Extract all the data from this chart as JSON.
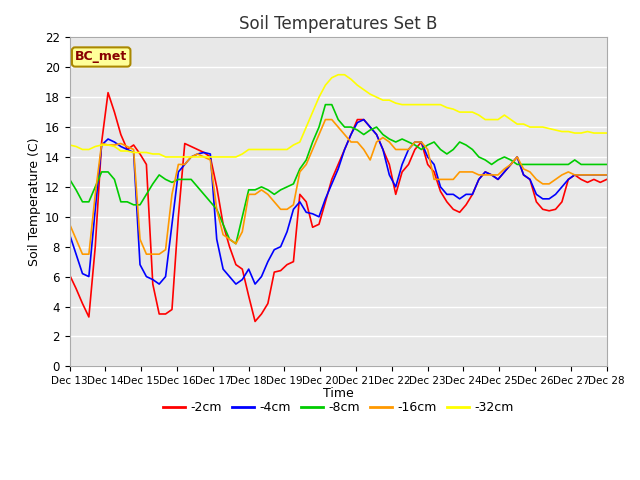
{
  "title": "Soil Temperatures Set B",
  "xlabel": "Time",
  "ylabel": "Soil Temperature (C)",
  "annotation": "BC_met",
  "ylim": [
    0,
    22
  ],
  "xlim": [
    0,
    15
  ],
  "x_tick_labels": [
    "Dec 13",
    "Dec 14",
    "Dec 15",
    "Dec 16",
    "Dec 17",
    "Dec 18",
    "Dec 19",
    "Dec 20",
    "Dec 21",
    "Dec 22",
    "Dec 23",
    "Dec 24",
    "Dec 25",
    "Dec 26",
    "Dec 27",
    "Dec 28"
  ],
  "bg_color": "#ffffff",
  "plot_bg_color": "#e8e8e8",
  "series_order": [
    "-2cm",
    "-4cm",
    "-8cm",
    "-16cm",
    "-32cm"
  ],
  "series": {
    "-2cm": {
      "color": "#ff0000",
      "lw": 1.2
    },
    "-4cm": {
      "color": "#0000ff",
      "lw": 1.2
    },
    "-8cm": {
      "color": "#00cc00",
      "lw": 1.2
    },
    "-16cm": {
      "color": "#ff9900",
      "lw": 1.2
    },
    "-32cm": {
      "color": "#ffff00",
      "lw": 1.2
    }
  },
  "data_x_days": 15,
  "data": {
    "-2cm": [
      6.1,
      5.2,
      4.2,
      3.3,
      8.0,
      15.0,
      18.3,
      17.0,
      15.5,
      14.5,
      14.8,
      14.2,
      13.5,
      5.5,
      3.5,
      3.5,
      3.8,
      10.0,
      14.9,
      14.7,
      14.5,
      14.3,
      14.0,
      12.0,
      9.5,
      8.0,
      6.8,
      6.5,
      4.7,
      3.0,
      3.5,
      4.2,
      6.3,
      6.4,
      6.8,
      7.0,
      11.5,
      11.0,
      9.3,
      9.5,
      11.0,
      12.5,
      13.5,
      14.5,
      15.5,
      16.5,
      16.5,
      16.0,
      15.5,
      14.5,
      13.5,
      11.5,
      13.0,
      13.5,
      14.5,
      15.0,
      13.5,
      13.0,
      11.7,
      11.0,
      10.5,
      10.3,
      10.8,
      11.5,
      12.5,
      13.0,
      12.8,
      12.5,
      13.0,
      13.5,
      14.0,
      12.8,
      12.5,
      11.0,
      10.5,
      10.4,
      10.5,
      11.0,
      12.5,
      12.8,
      12.5,
      12.3,
      12.5,
      12.3,
      12.5
    ],
    "-4cm": [
      8.8,
      7.5,
      6.2,
      6.0,
      10.5,
      14.8,
      15.2,
      15.0,
      14.7,
      14.5,
      14.3,
      6.8,
      6.0,
      5.8,
      5.5,
      6.0,
      9.5,
      13.0,
      13.5,
      14.0,
      14.2,
      14.3,
      14.2,
      8.5,
      6.5,
      6.0,
      5.5,
      5.8,
      6.5,
      5.5,
      6.0,
      7.0,
      7.8,
      8.0,
      9.0,
      10.5,
      11.0,
      10.3,
      10.2,
      10.0,
      11.2,
      12.2,
      13.2,
      14.5,
      15.5,
      16.3,
      16.5,
      16.0,
      15.5,
      14.5,
      12.8,
      12.0,
      13.5,
      14.5,
      15.0,
      15.0,
      14.0,
      13.5,
      12.0,
      11.5,
      11.5,
      11.2,
      11.5,
      11.5,
      12.5,
      13.0,
      12.8,
      12.5,
      13.0,
      13.5,
      14.0,
      12.8,
      12.5,
      11.5,
      11.2,
      11.2,
      11.5,
      12.0,
      12.5,
      12.8,
      12.8,
      12.8,
      12.8,
      12.8,
      12.8
    ],
    "-8cm": [
      12.5,
      11.8,
      11.0,
      11.0,
      12.0,
      13.0,
      13.0,
      12.5,
      11.0,
      11.0,
      10.8,
      10.8,
      11.5,
      12.2,
      12.8,
      12.5,
      12.3,
      12.5,
      12.5,
      12.5,
      12.0,
      11.5,
      11.0,
      10.5,
      9.5,
      8.5,
      8.2,
      10.0,
      11.8,
      11.8,
      12.0,
      11.8,
      11.5,
      11.8,
      12.0,
      12.2,
      13.2,
      13.8,
      15.0,
      16.0,
      17.5,
      17.5,
      16.5,
      16.0,
      16.0,
      15.8,
      15.5,
      15.8,
      16.0,
      15.5,
      15.2,
      15.0,
      15.2,
      15.0,
      14.8,
      14.5,
      14.8,
      15.0,
      14.5,
      14.2,
      14.5,
      15.0,
      14.8,
      14.5,
      14.0,
      13.8,
      13.5,
      13.8,
      14.0,
      13.8,
      13.5,
      13.5,
      13.5,
      13.5,
      13.5,
      13.5,
      13.5,
      13.5,
      13.5,
      13.8,
      13.5,
      13.5,
      13.5,
      13.5,
      13.5
    ],
    "-16cm": [
      9.5,
      8.5,
      7.5,
      7.5,
      11.5,
      14.9,
      14.8,
      14.8,
      14.9,
      14.7,
      14.5,
      8.5,
      7.5,
      7.5,
      7.5,
      7.8,
      11.5,
      13.5,
      13.5,
      14.0,
      14.2,
      14.0,
      13.8,
      10.5,
      8.8,
      8.5,
      8.2,
      9.0,
      11.5,
      11.5,
      11.8,
      11.5,
      11.0,
      10.5,
      10.5,
      10.8,
      13.0,
      13.5,
      14.5,
      15.5,
      16.5,
      16.5,
      16.0,
      15.5,
      15.0,
      15.0,
      14.5,
      13.8,
      15.0,
      15.3,
      15.0,
      14.5,
      14.5,
      14.5,
      15.0,
      15.0,
      14.5,
      12.5,
      12.5,
      12.5,
      12.5,
      13.0,
      13.0,
      13.0,
      12.8,
      12.8,
      12.8,
      12.8,
      13.2,
      13.5,
      14.0,
      13.2,
      13.0,
      12.5,
      12.2,
      12.2,
      12.5,
      12.8,
      13.0,
      12.8,
      12.8,
      12.8,
      12.8,
      12.8,
      12.8
    ],
    "-32cm": [
      14.8,
      14.7,
      14.5,
      14.5,
      14.7,
      14.8,
      14.8,
      14.7,
      14.4,
      14.4,
      14.3,
      14.3,
      14.3,
      14.2,
      14.2,
      14.0,
      14.0,
      14.0,
      14.0,
      14.0,
      14.0,
      14.0,
      14.0,
      14.0,
      14.0,
      14.0,
      14.0,
      14.2,
      14.5,
      14.5,
      14.5,
      14.5,
      14.5,
      14.5,
      14.5,
      14.8,
      15.0,
      16.0,
      17.0,
      18.0,
      18.8,
      19.3,
      19.5,
      19.5,
      19.2,
      18.8,
      18.5,
      18.2,
      18.0,
      17.8,
      17.8,
      17.6,
      17.5,
      17.5,
      17.5,
      17.5,
      17.5,
      17.5,
      17.5,
      17.3,
      17.2,
      17.0,
      17.0,
      17.0,
      16.8,
      16.5,
      16.5,
      16.5,
      16.8,
      16.5,
      16.2,
      16.2,
      16.0,
      16.0,
      16.0,
      15.9,
      15.8,
      15.7,
      15.7,
      15.6,
      15.6,
      15.7,
      15.6,
      15.6,
      15.6
    ]
  }
}
